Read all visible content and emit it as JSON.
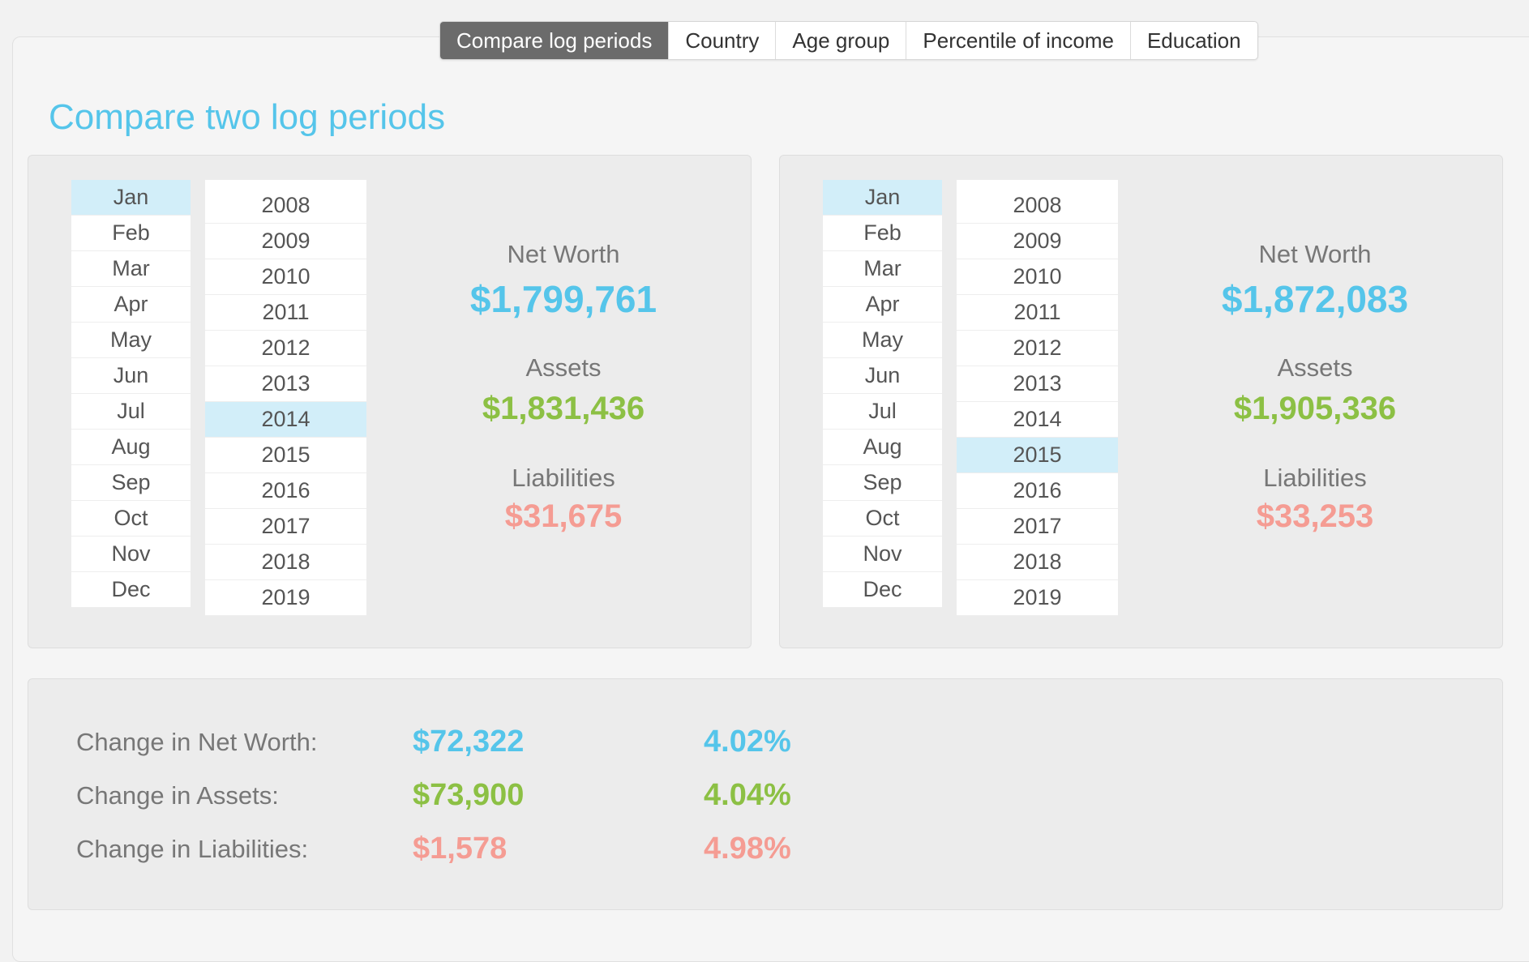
{
  "tabs": [
    {
      "label": "Compare log periods",
      "active": true
    },
    {
      "label": "Country",
      "active": false
    },
    {
      "label": "Age group",
      "active": false
    },
    {
      "label": "Percentile of income",
      "active": false
    },
    {
      "label": "Education",
      "active": false
    }
  ],
  "page_title": "Compare two log periods",
  "months": [
    "Jan",
    "Feb",
    "Mar",
    "Apr",
    "May",
    "Jun",
    "Jul",
    "Aug",
    "Sep",
    "Oct",
    "Nov",
    "Dec"
  ],
  "years": [
    "2008",
    "2009",
    "2010",
    "2011",
    "2012",
    "2013",
    "2014",
    "2015",
    "2016",
    "2017",
    "2018",
    "2019"
  ],
  "periods": [
    {
      "selected_month": "Jan",
      "selected_year": "2014",
      "net_worth_label": "Net Worth",
      "net_worth": "$1,799,761",
      "assets_label": "Assets",
      "assets": "$1,831,436",
      "liabilities_label": "Liabilities",
      "liabilities": "$31,675"
    },
    {
      "selected_month": "Jan",
      "selected_year": "2015",
      "net_worth_label": "Net Worth",
      "net_worth": "$1,872,083",
      "assets_label": "Assets",
      "assets": "$1,905,336",
      "liabilities_label": "Liabilities",
      "liabilities": "$33,253"
    }
  ],
  "summary": {
    "net_worth": {
      "label": "Change in Net Worth:",
      "amount": "$72,322",
      "percent": "4.02%"
    },
    "assets": {
      "label": "Change in Assets:",
      "amount": "$73,900",
      "percent": "4.04%"
    },
    "liabilities": {
      "label": "Change in Liabilities:",
      "amount": "$1,578",
      "percent": "4.98%"
    }
  },
  "colors": {
    "net_worth": "#55c5ea",
    "assets": "#8cc044",
    "liabilities": "#f59c93",
    "selection": "#d2eef9",
    "active_tab": "#6b6b6b"
  }
}
